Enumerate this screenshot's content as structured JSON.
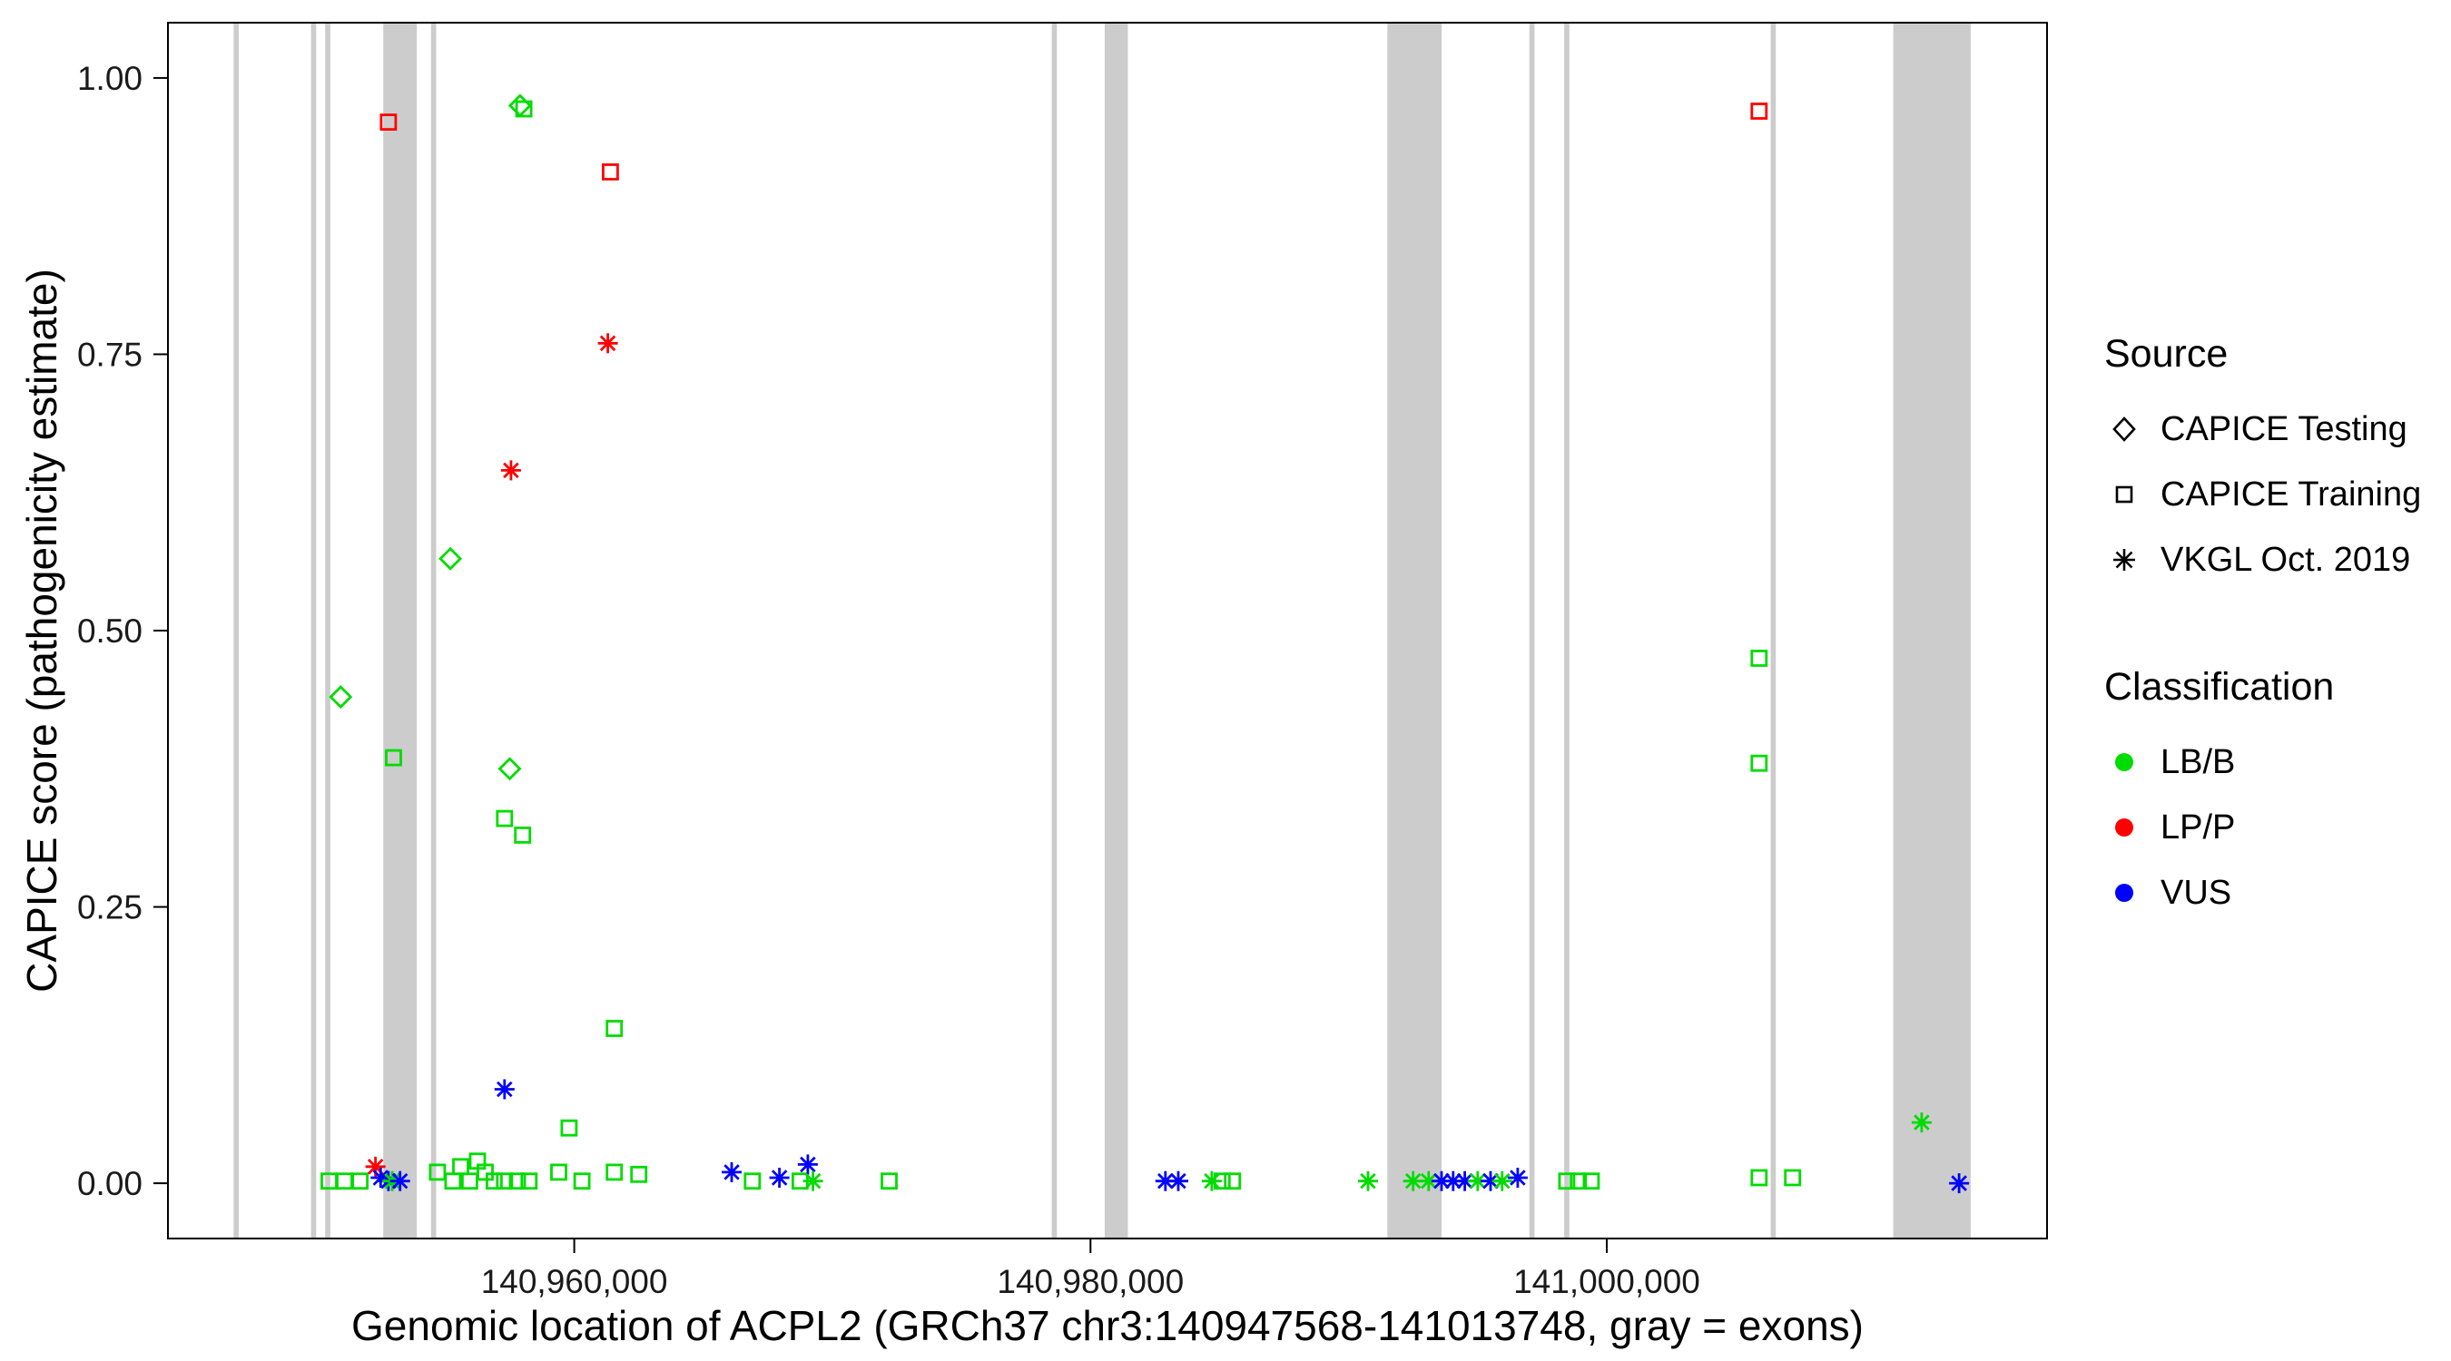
{
  "figure": {
    "y_axis_title": "CAPICE score (pathogenicity estimate)",
    "x_axis_title": "Genomic location of ACPL2 (GRCh37 chr3:140947568-141013748, gray = exons)"
  },
  "legend": {
    "source": {
      "title": "Source",
      "items": [
        {
          "label": "CAPICE Testing",
          "shape": "diamond"
        },
        {
          "label": "CAPICE Training",
          "shape": "square"
        },
        {
          "label": "VKGL Oct. 2019",
          "shape": "asterisk"
        }
      ]
    },
    "classification": {
      "title": "Classification",
      "items": [
        {
          "label": "LB/B",
          "color": "#00DC00"
        },
        {
          "label": "LP/P",
          "color": "#FF0000"
        },
        {
          "label": "VUS",
          "color": "#0000FF"
        }
      ]
    }
  },
  "chart_data": {
    "type": "scatter",
    "title": "",
    "xlabel": "Genomic location of ACPL2 (GRCh37 chr3:140947568-141013748, gray = exons)",
    "ylabel": "CAPICE score (pathogenicity estimate)",
    "xlim": [
      140944259,
      141017057
    ],
    "ylim": [
      -0.05,
      1.05
    ],
    "grid": false,
    "legend_position": "right",
    "x_ticks": [
      {
        "value": 140960000,
        "label": "140,960,000"
      },
      {
        "value": 140980000,
        "label": "140,980,000"
      },
      {
        "value": 141000000,
        "label": "141,000,000"
      }
    ],
    "y_ticks": [
      {
        "value": 0.0,
        "label": "0.00"
      },
      {
        "value": 0.25,
        "label": "0.25"
      },
      {
        "value": 0.5,
        "label": "0.50"
      },
      {
        "value": 0.75,
        "label": "0.75"
      },
      {
        "value": 1.0,
        "label": "1.00"
      }
    ],
    "exon_color": "#CCCCCC",
    "colors": {
      "LB/B": "#00DC00",
      "LP/P": "#FF0000",
      "VUS": "#0000FF"
    },
    "shapes": {
      "CAPICE Testing": "diamond",
      "CAPICE Training": "square",
      "VKGL Oct. 2019": "asterisk"
    },
    "exons": [
      [
        140946800,
        140947000
      ],
      [
        140949800,
        140950000
      ],
      [
        140950350,
        140950550
      ],
      [
        140952600,
        140953900
      ],
      [
        140954450,
        140954650
      ],
      [
        140978500,
        140978700
      ],
      [
        140980550,
        140981450
      ],
      [
        140991500,
        140993600
      ],
      [
        140997000,
        140997200
      ],
      [
        140998350,
        140998550
      ],
      [
        141006350,
        141006550
      ],
      [
        141011100,
        141014100
      ]
    ],
    "points": [
      {
        "x": 140950950,
        "y": 0.44,
        "source": "CAPICE Testing",
        "classification": "LB/B"
      },
      {
        "x": 140952800,
        "y": 0.96,
        "source": "CAPICE Training",
        "classification": "LP/P"
      },
      {
        "x": 140953000,
        "y": 0.385,
        "source": "CAPICE Training",
        "classification": "LB/B"
      },
      {
        "x": 140955200,
        "y": 0.565,
        "source": "CAPICE Testing",
        "classification": "LB/B"
      },
      {
        "x": 140957300,
        "y": 0.33,
        "source": "CAPICE Training",
        "classification": "LB/B"
      },
      {
        "x": 140957500,
        "y": 0.375,
        "source": "CAPICE Testing",
        "classification": "LB/B"
      },
      {
        "x": 140957550,
        "y": 0.645,
        "source": "VKGL Oct. 2019",
        "classification": "LP/P"
      },
      {
        "x": 140957300,
        "y": 0.085,
        "source": "VKGL Oct. 2019",
        "classification": "VUS"
      },
      {
        "x": 140957900,
        "y": 0.975,
        "source": "CAPICE Testing",
        "classification": "LB/B"
      },
      {
        "x": 140958050,
        "y": 0.972,
        "source": "CAPICE Training",
        "classification": "LB/B"
      },
      {
        "x": 140958000,
        "y": 0.315,
        "source": "CAPICE Training",
        "classification": "LB/B"
      },
      {
        "x": 140959800,
        "y": 0.05,
        "source": "CAPICE Training",
        "classification": "LB/B"
      },
      {
        "x": 140961300,
        "y": 0.76,
        "source": "VKGL Oct. 2019",
        "classification": "LP/P"
      },
      {
        "x": 140961400,
        "y": 0.915,
        "source": "CAPICE Training",
        "classification": "LP/P"
      },
      {
        "x": 140961550,
        "y": 0.14,
        "source": "CAPICE Training",
        "classification": "LB/B"
      },
      {
        "x": 141005900,
        "y": 0.97,
        "source": "CAPICE Training",
        "classification": "LP/P"
      },
      {
        "x": 141005900,
        "y": 0.475,
        "source": "CAPICE Training",
        "classification": "LB/B"
      },
      {
        "x": 141005900,
        "y": 0.38,
        "source": "CAPICE Training",
        "classification": "LB/B"
      },
      {
        "x": 141012200,
        "y": 0.055,
        "source": "VKGL Oct. 2019",
        "classification": "LB/B"
      },
      {
        "x": 141013650,
        "y": 0.0,
        "source": "VKGL Oct. 2019",
        "classification": "VUS"
      },
      {
        "x": 140950500,
        "y": 0.002,
        "source": "CAPICE Training",
        "classification": "LB/B"
      },
      {
        "x": 140951100,
        "y": 0.002,
        "source": "CAPICE Training",
        "classification": "LB/B"
      },
      {
        "x": 140951700,
        "y": 0.002,
        "source": "CAPICE Training",
        "classification": "LB/B"
      },
      {
        "x": 140952300,
        "y": 0.015,
        "source": "VKGL Oct. 2019",
        "classification": "LP/P"
      },
      {
        "x": 140952500,
        "y": 0.005,
        "source": "VKGL Oct. 2019",
        "classification": "VUS"
      },
      {
        "x": 140952800,
        "y": 0.002,
        "source": "VKGL Oct. 2019",
        "classification": "VUS"
      },
      {
        "x": 140952950,
        "y": 0.002,
        "source": "VKGL Oct. 2019",
        "classification": "LB/B"
      },
      {
        "x": 140953250,
        "y": 0.002,
        "source": "VKGL Oct. 2019",
        "classification": "VUS"
      },
      {
        "x": 140954700,
        "y": 0.01,
        "source": "CAPICE Training",
        "classification": "LB/B"
      },
      {
        "x": 140955300,
        "y": 0.002,
        "source": "CAPICE Training",
        "classification": "LB/B"
      },
      {
        "x": 140955600,
        "y": 0.015,
        "source": "CAPICE Training",
        "classification": "LB/B"
      },
      {
        "x": 140955950,
        "y": 0.002,
        "source": "CAPICE Training",
        "classification": "LB/B"
      },
      {
        "x": 140956250,
        "y": 0.02,
        "source": "CAPICE Training",
        "classification": "LB/B"
      },
      {
        "x": 140956550,
        "y": 0.01,
        "source": "CAPICE Training",
        "classification": "LB/B"
      },
      {
        "x": 140956900,
        "y": 0.002,
        "source": "CAPICE Training",
        "classification": "LB/B"
      },
      {
        "x": 140957300,
        "y": 0.002,
        "source": "CAPICE Training",
        "classification": "LB/B"
      },
      {
        "x": 140957800,
        "y": 0.002,
        "source": "CAPICE Training",
        "classification": "LB/B"
      },
      {
        "x": 140958250,
        "y": 0.002,
        "source": "CAPICE Training",
        "classification": "LB/B"
      },
      {
        "x": 140959400,
        "y": 0.01,
        "source": "CAPICE Training",
        "classification": "LB/B"
      },
      {
        "x": 140960300,
        "y": 0.002,
        "source": "CAPICE Training",
        "classification": "LB/B"
      },
      {
        "x": 140961550,
        "y": 0.01,
        "source": "CAPICE Training",
        "classification": "LB/B"
      },
      {
        "x": 140962500,
        "y": 0.008,
        "source": "CAPICE Training",
        "classification": "LB/B"
      },
      {
        "x": 140966100,
        "y": 0.01,
        "source": "VKGL Oct. 2019",
        "classification": "VUS"
      },
      {
        "x": 140966900,
        "y": 0.002,
        "source": "CAPICE Training",
        "classification": "LB/B"
      },
      {
        "x": 140967950,
        "y": 0.005,
        "source": "VKGL Oct. 2019",
        "classification": "VUS"
      },
      {
        "x": 140968750,
        "y": 0.002,
        "source": "CAPICE Training",
        "classification": "LB/B"
      },
      {
        "x": 140969050,
        "y": 0.017,
        "source": "VKGL Oct. 2019",
        "classification": "VUS"
      },
      {
        "x": 140969250,
        "y": 0.002,
        "source": "VKGL Oct. 2019",
        "classification": "LB/B"
      },
      {
        "x": 140972200,
        "y": 0.002,
        "source": "CAPICE Training",
        "classification": "LB/B"
      },
      {
        "x": 140982900,
        "y": 0.002,
        "source": "VKGL Oct. 2019",
        "classification": "VUS"
      },
      {
        "x": 140983400,
        "y": 0.002,
        "source": "VKGL Oct. 2019",
        "classification": "VUS"
      },
      {
        "x": 140984700,
        "y": 0.002,
        "source": "VKGL Oct. 2019",
        "classification": "LB/B"
      },
      {
        "x": 140985100,
        "y": 0.002,
        "source": "CAPICE Training",
        "classification": "LB/B"
      },
      {
        "x": 140985500,
        "y": 0.002,
        "source": "CAPICE Training",
        "classification": "LB/B"
      },
      {
        "x": 140990750,
        "y": 0.002,
        "source": "VKGL Oct. 2019",
        "classification": "LB/B"
      },
      {
        "x": 140992500,
        "y": 0.002,
        "source": "VKGL Oct. 2019",
        "classification": "LB/B"
      },
      {
        "x": 140993100,
        "y": 0.002,
        "source": "VKGL Oct. 2019",
        "classification": "LB/B"
      },
      {
        "x": 140993600,
        "y": 0.002,
        "source": "VKGL Oct. 2019",
        "classification": "VUS"
      },
      {
        "x": 140994050,
        "y": 0.002,
        "source": "VKGL Oct. 2019",
        "classification": "VUS"
      },
      {
        "x": 140994500,
        "y": 0.002,
        "source": "VKGL Oct. 2019",
        "classification": "VUS"
      },
      {
        "x": 140995000,
        "y": 0.002,
        "source": "VKGL Oct. 2019",
        "classification": "LB/B"
      },
      {
        "x": 140995500,
        "y": 0.002,
        "source": "VKGL Oct. 2019",
        "classification": "VUS"
      },
      {
        "x": 140995950,
        "y": 0.002,
        "source": "VKGL Oct. 2019",
        "classification": "LB/B"
      },
      {
        "x": 140996550,
        "y": 0.005,
        "source": "VKGL Oct. 2019",
        "classification": "VUS"
      },
      {
        "x": 140998450,
        "y": 0.002,
        "source": "CAPICE Training",
        "classification": "LB/B"
      },
      {
        "x": 140998900,
        "y": 0.002,
        "source": "CAPICE Training",
        "classification": "LB/B"
      },
      {
        "x": 140999400,
        "y": 0.002,
        "source": "CAPICE Training",
        "classification": "LB/B"
      },
      {
        "x": 141005900,
        "y": 0.005,
        "source": "CAPICE Training",
        "classification": "LB/B"
      },
      {
        "x": 141007200,
        "y": 0.005,
        "source": "CAPICE Training",
        "classification": "LB/B"
      }
    ]
  }
}
